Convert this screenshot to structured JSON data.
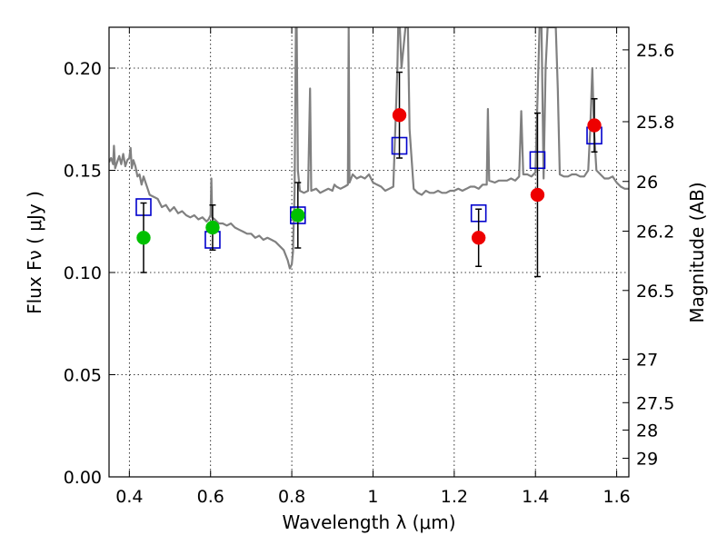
{
  "chart_data": {
    "type": "scatter",
    "xlabel": "Wavelength  λ (μm)",
    "ylabel": "Flux  Fν  ( μJy )",
    "y2label": "Magnitude (AB)",
    "xlim": [
      0.35,
      1.63
    ],
    "ylim": [
      0.0,
      0.22
    ],
    "grid": true,
    "x_ticks": [
      {
        "value": 0.4,
        "label": "0.4"
      },
      {
        "value": 0.6,
        "label": "0.6"
      },
      {
        "value": 0.8,
        "label": "0.8"
      },
      {
        "value": 1.0,
        "label": "1"
      },
      {
        "value": 1.2,
        "label": "1.2"
      },
      {
        "value": 1.4,
        "label": "1.4"
      },
      {
        "value": 1.6,
        "label": "1.6"
      }
    ],
    "y_ticks": [
      {
        "value": 0.0,
        "label": "0.00"
      },
      {
        "value": 0.05,
        "label": "0.05"
      },
      {
        "value": 0.1,
        "label": "0.10"
      },
      {
        "value": 0.15,
        "label": "0.15"
      },
      {
        "value": 0.2,
        "label": "0.20"
      }
    ],
    "y2_ticks": [
      {
        "value": 25.6,
        "label": "25.6"
      },
      {
        "value": 25.8,
        "label": "25.8"
      },
      {
        "value": 26.0,
        "label": "26"
      },
      {
        "value": 26.2,
        "label": "26.2"
      },
      {
        "value": 26.5,
        "label": "26.5"
      },
      {
        "value": 27.0,
        "label": "27"
      },
      {
        "value": 27.5,
        "label": "27.5"
      },
      {
        "value": 28.0,
        "label": "28"
      },
      {
        "value": 29.0,
        "label": "29"
      }
    ],
    "series": [
      {
        "kind": "model-spectrum",
        "color": "#808080",
        "points": [
          [
            0.35,
            0.154
          ],
          [
            0.355,
            0.156
          ],
          [
            0.36,
            0.153
          ],
          [
            0.362,
            0.162
          ],
          [
            0.365,
            0.151
          ],
          [
            0.37,
            0.154
          ],
          [
            0.375,
            0.157
          ],
          [
            0.38,
            0.153
          ],
          [
            0.385,
            0.158
          ],
          [
            0.39,
            0.152
          ],
          [
            0.395,
            0.155
          ],
          [
            0.4,
            0.156
          ],
          [
            0.403,
            0.161
          ],
          [
            0.406,
            0.151
          ],
          [
            0.41,
            0.155
          ],
          [
            0.415,
            0.152
          ],
          [
            0.42,
            0.147
          ],
          [
            0.425,
            0.148
          ],
          [
            0.43,
            0.143
          ],
          [
            0.435,
            0.147
          ],
          [
            0.44,
            0.144
          ],
          [
            0.445,
            0.141
          ],
          [
            0.45,
            0.138
          ],
          [
            0.46,
            0.137
          ],
          [
            0.47,
            0.136
          ],
          [
            0.48,
            0.132
          ],
          [
            0.49,
            0.133
          ],
          [
            0.5,
            0.13
          ],
          [
            0.51,
            0.132
          ],
          [
            0.52,
            0.129
          ],
          [
            0.53,
            0.13
          ],
          [
            0.54,
            0.128
          ],
          [
            0.55,
            0.127
          ],
          [
            0.56,
            0.128
          ],
          [
            0.57,
            0.126
          ],
          [
            0.58,
            0.127
          ],
          [
            0.59,
            0.125
          ],
          [
            0.595,
            0.126
          ],
          [
            0.6,
            0.128
          ],
          [
            0.602,
            0.146
          ],
          [
            0.604,
            0.127
          ],
          [
            0.61,
            0.126
          ],
          [
            0.62,
            0.124
          ],
          [
            0.63,
            0.124
          ],
          [
            0.64,
            0.123
          ],
          [
            0.65,
            0.124
          ],
          [
            0.66,
            0.122
          ],
          [
            0.67,
            0.121
          ],
          [
            0.68,
            0.12
          ],
          [
            0.69,
            0.119
          ],
          [
            0.7,
            0.119
          ],
          [
            0.71,
            0.117
          ],
          [
            0.72,
            0.118
          ],
          [
            0.73,
            0.116
          ],
          [
            0.74,
            0.117
          ],
          [
            0.75,
            0.116
          ],
          [
            0.76,
            0.115
          ],
          [
            0.77,
            0.113
          ],
          [
            0.78,
            0.111
          ],
          [
            0.79,
            0.106
          ],
          [
            0.795,
            0.102
          ],
          [
            0.8,
            0.104
          ],
          [
            0.803,
            0.11
          ],
          [
            0.807,
            0.14
          ],
          [
            0.81,
            0.22
          ],
          [
            0.812,
            0.22
          ],
          [
            0.815,
            0.15
          ],
          [
            0.82,
            0.14
          ],
          [
            0.83,
            0.139
          ],
          [
            0.84,
            0.14
          ],
          [
            0.845,
            0.19
          ],
          [
            0.848,
            0.14
          ],
          [
            0.86,
            0.141
          ],
          [
            0.87,
            0.139
          ],
          [
            0.88,
            0.14
          ],
          [
            0.89,
            0.141
          ],
          [
            0.9,
            0.14
          ],
          [
            0.905,
            0.143
          ],
          [
            0.91,
            0.142
          ],
          [
            0.92,
            0.141
          ],
          [
            0.93,
            0.142
          ],
          [
            0.938,
            0.143
          ],
          [
            0.94,
            0.22
          ],
          [
            0.942,
            0.144
          ],
          [
            0.95,
            0.148
          ],
          [
            0.96,
            0.146
          ],
          [
            0.97,
            0.147
          ],
          [
            0.98,
            0.146
          ],
          [
            0.99,
            0.148
          ],
          [
            1.0,
            0.144
          ],
          [
            1.01,
            0.143
          ],
          [
            1.02,
            0.142
          ],
          [
            1.03,
            0.14
          ],
          [
            1.04,
            0.141
          ],
          [
            1.05,
            0.142
          ],
          [
            1.06,
            0.2
          ],
          [
            1.062,
            0.22
          ],
          [
            1.066,
            0.22
          ],
          [
            1.07,
            0.2
          ],
          [
            1.08,
            0.22
          ],
          [
            1.086,
            0.22
          ],
          [
            1.09,
            0.17
          ],
          [
            1.1,
            0.141
          ],
          [
            1.11,
            0.139
          ],
          [
            1.12,
            0.138
          ],
          [
            1.13,
            0.14
          ],
          [
            1.14,
            0.139
          ],
          [
            1.15,
            0.139
          ],
          [
            1.16,
            0.14
          ],
          [
            1.17,
            0.139
          ],
          [
            1.18,
            0.139
          ],
          [
            1.19,
            0.14
          ],
          [
            1.2,
            0.14
          ],
          [
            1.21,
            0.141
          ],
          [
            1.22,
            0.14
          ],
          [
            1.23,
            0.141
          ],
          [
            1.24,
            0.142
          ],
          [
            1.25,
            0.142
          ],
          [
            1.26,
            0.141
          ],
          [
            1.27,
            0.143
          ],
          [
            1.28,
            0.143
          ],
          [
            1.283,
            0.18
          ],
          [
            1.286,
            0.145
          ],
          [
            1.3,
            0.144
          ],
          [
            1.31,
            0.145
          ],
          [
            1.32,
            0.145
          ],
          [
            1.33,
            0.145
          ],
          [
            1.34,
            0.146
          ],
          [
            1.35,
            0.145
          ],
          [
            1.36,
            0.147
          ],
          [
            1.365,
            0.179
          ],
          [
            1.37,
            0.148
          ],
          [
            1.38,
            0.148
          ],
          [
            1.39,
            0.147
          ],
          [
            1.4,
            0.149
          ],
          [
            1.41,
            0.22
          ],
          [
            1.415,
            0.22
          ],
          [
            1.42,
            0.146
          ],
          [
            1.425,
            0.2
          ],
          [
            1.43,
            0.22
          ],
          [
            1.44,
            0.22
          ],
          [
            1.45,
            0.22
          ],
          [
            1.455,
            0.19
          ],
          [
            1.46,
            0.148
          ],
          [
            1.47,
            0.147
          ],
          [
            1.48,
            0.147
          ],
          [
            1.49,
            0.148
          ],
          [
            1.5,
            0.148
          ],
          [
            1.51,
            0.147
          ],
          [
            1.52,
            0.147
          ],
          [
            1.53,
            0.15
          ],
          [
            1.535,
            0.17
          ],
          [
            1.54,
            0.2
          ],
          [
            1.544,
            0.17
          ],
          [
            1.55,
            0.15
          ],
          [
            1.56,
            0.148
          ],
          [
            1.57,
            0.146
          ],
          [
            1.58,
            0.146
          ],
          [
            1.59,
            0.147
          ],
          [
            1.6,
            0.144
          ],
          [
            1.61,
            0.142
          ],
          [
            1.62,
            0.141
          ],
          [
            1.63,
            0.141
          ]
        ]
      },
      {
        "kind": "model-box",
        "color": "#0000cc",
        "points": [
          [
            0.435,
            0.132
          ],
          [
            0.605,
            0.116
          ],
          [
            0.815,
            0.128
          ],
          [
            1.065,
            0.162
          ],
          [
            1.26,
            0.129
          ],
          [
            1.405,
            0.155
          ],
          [
            1.545,
            0.167
          ]
        ]
      },
      {
        "kind": "detection",
        "color": "#00c000",
        "points": [
          {
            "x": 0.435,
            "y": 0.117,
            "err": 0.017
          },
          {
            "x": 0.605,
            "y": 0.122,
            "err": 0.011
          },
          {
            "x": 0.815,
            "y": 0.128,
            "err": 0.016
          }
        ]
      },
      {
        "kind": "detection",
        "color": "#ee0000",
        "points": [
          {
            "x": 1.065,
            "y": 0.177,
            "err": 0.021
          },
          {
            "x": 1.26,
            "y": 0.117,
            "err": 0.014
          },
          {
            "x": 1.405,
            "y": 0.138,
            "err": 0.04
          },
          {
            "x": 1.545,
            "y": 0.172,
            "err": 0.013
          }
        ]
      }
    ]
  }
}
